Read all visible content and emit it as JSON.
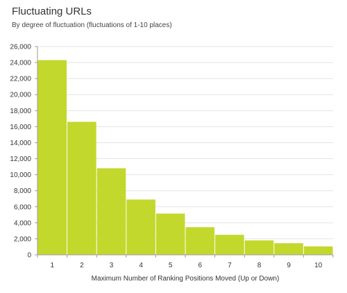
{
  "chart_data": {
    "type": "bar",
    "title": "Fluctuating URLs",
    "subtitle": "By degree of fluctuation (fluctuations of 1-10 places)",
    "xlabel": "Maximum Number of Ranking Positions Moved (Up or Down)",
    "ylabel": "",
    "categories": [
      "1",
      "2",
      "3",
      "4",
      "5",
      "6",
      "7",
      "8",
      "9",
      "10"
    ],
    "values": [
      24300,
      16600,
      10800,
      6900,
      5150,
      3450,
      2500,
      1800,
      1450,
      1050
    ],
    "ylim": [
      0,
      26000
    ],
    "yticks": [
      0,
      2000,
      4000,
      6000,
      8000,
      10000,
      12000,
      14000,
      16000,
      18000,
      20000,
      22000,
      24000,
      26000
    ],
    "ytick_labels": [
      "0",
      "2,000",
      "4,000",
      "6,000",
      "8,000",
      "10,000",
      "12,000",
      "14,000",
      "16,000",
      "18,000",
      "20,000",
      "22,000",
      "24,000",
      "26,000"
    ],
    "grid": true,
    "legend": "none",
    "bar_color": "#c3d82d",
    "grid_color": "#e3e3e3",
    "axis_color": "#9a9a9a"
  }
}
